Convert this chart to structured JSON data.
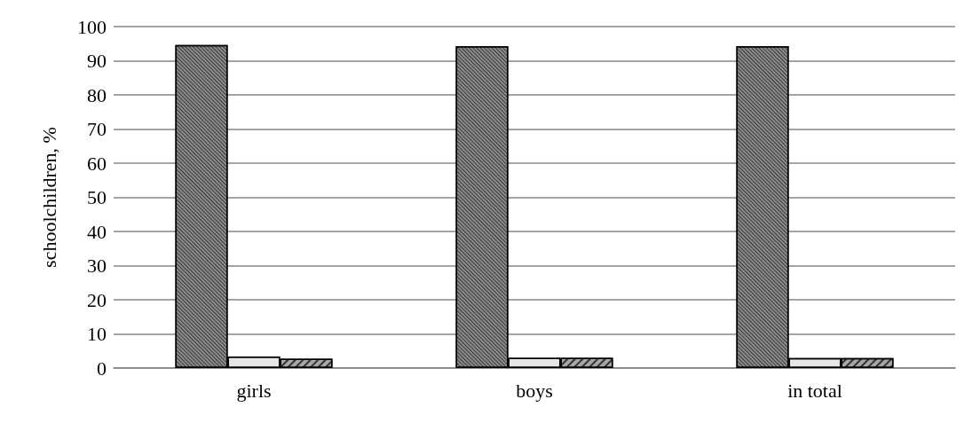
{
  "chart_data": {
    "type": "bar",
    "ylabel": "schoolchildren, %",
    "categories": [
      "girls",
      "boys",
      "in total"
    ],
    "series": [
      {
        "color": "#8c8c8c",
        "values": [
          94.6,
          94.3,
          94.3
        ]
      },
      {
        "color": "#e6e6e6",
        "values": [
          3.4,
          3.0,
          2.9
        ]
      },
      {
        "color": "#a6a6a6",
        "values": [
          2.7,
          3.0,
          2.9
        ]
      }
    ],
    "ylim": [
      0,
      100
    ],
    "yticks": [
      0,
      10,
      20,
      30,
      40,
      50,
      60,
      70,
      80,
      90,
      100
    ],
    "grid": "y"
  }
}
